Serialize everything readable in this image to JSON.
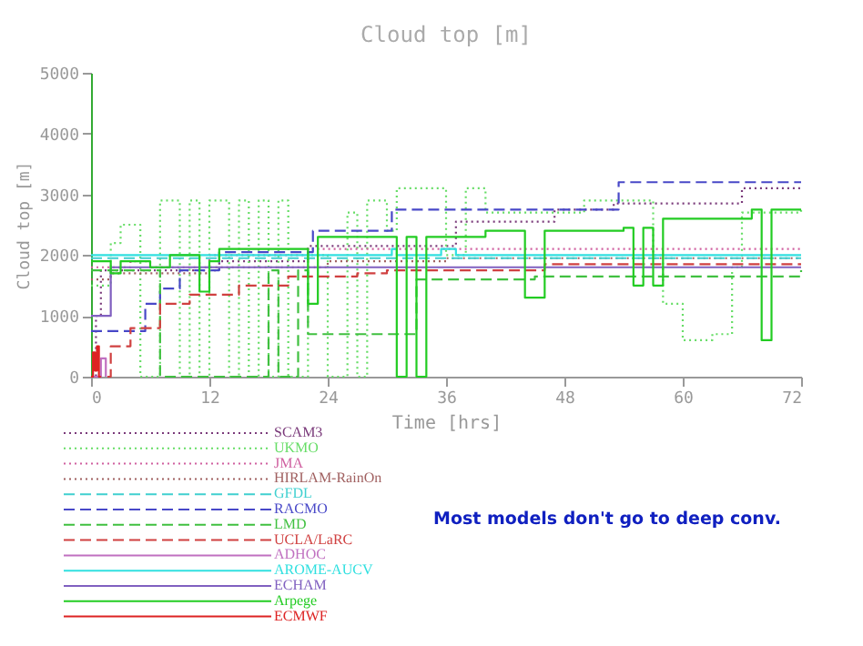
{
  "chart_data": {
    "type": "step",
    "title": "Cloud top [m]",
    "xlabel": "Time [hrs]",
    "ylabel": "Cloud top [m]",
    "xlim": [
      0,
      72
    ],
    "ylim": [
      0,
      5000
    ],
    "xticks": [
      0,
      12,
      24,
      36,
      48,
      60,
      72
    ],
    "yticks": [
      0,
      1000,
      2000,
      3000,
      4000,
      5000
    ],
    "grid": false,
    "legend": "bottom left",
    "marker": "none",
    "annotations": [
      "Most models don't go to deep conv."
    ],
    "series": [
      {
        "name": "SCAM3",
        "color": "#7a3a7a",
        "line_style": "dotted",
        "x": [
          0,
          0.5,
          1,
          12,
          13,
          22,
          33,
          36,
          37,
          44,
          47,
          53,
          65,
          66,
          72
        ],
        "values": [
          0,
          1000,
          1750,
          1750,
          1900,
          2150,
          2150,
          2150,
          2550,
          2550,
          2750,
          2850,
          2850,
          3100,
          3100
        ]
      },
      {
        "name": "UKMO",
        "color": "#66dd66",
        "line_style": "dotted",
        "x": [
          0,
          2,
          3,
          5,
          7,
          8,
          9,
          10,
          11,
          12,
          14,
          15,
          16,
          17,
          18,
          19,
          20,
          22,
          24,
          26,
          27,
          28,
          30,
          31,
          33,
          36,
          38,
          40,
          47,
          50,
          54,
          57,
          58,
          60,
          63,
          65,
          66,
          72
        ],
        "values": [
          1500,
          2200,
          2500,
          0,
          2900,
          2900,
          0,
          2900,
          0,
          2900,
          0,
          2900,
          0,
          2900,
          0,
          2900,
          0,
          2000,
          0,
          2700,
          0,
          2900,
          2400,
          3100,
          3100,
          2000,
          3100,
          2700,
          2700,
          2900,
          2900,
          2000,
          1200,
          600,
          700,
          1800,
          2700,
          2800
        ]
      },
      {
        "name": "JMA",
        "color": "#d060a0",
        "line_style": "dotted",
        "x": [
          0,
          4,
          6,
          12,
          14,
          22,
          72
        ],
        "values": [
          1800,
          1900,
          1800,
          2000,
          2000,
          2100,
          2100
        ]
      },
      {
        "name": "HIRLAM-RainOn",
        "color": "#a06060",
        "line_style": "dotted",
        "x": [
          0,
          2,
          12,
          24,
          36,
          72
        ],
        "values": [
          1600,
          1700,
          1800,
          1900,
          1950,
          1950
        ]
      },
      {
        "name": "GFDL",
        "color": "#40d0d0",
        "line_style": "dashed",
        "x": [
          0,
          30,
          31,
          72
        ],
        "values": [
          1950,
          1950,
          1950,
          1950
        ]
      },
      {
        "name": "RACMO",
        "color": "#4848c8",
        "line_style": "dashed",
        "x": [
          0,
          5,
          5.5,
          7,
          9,
          12,
          13,
          22,
          22.5,
          30,
          30.5,
          53,
          53.5,
          72
        ],
        "values": [
          750,
          750,
          1200,
          1450,
          1750,
          1750,
          2050,
          2050,
          2400,
          2400,
          2750,
          2750,
          3200,
          3200
        ]
      },
      {
        "name": "LMD",
        "color": "#40c040",
        "line_style": "dashed",
        "x": [
          0,
          6,
          7,
          18,
          19,
          21,
          22,
          30,
          33,
          38,
          40,
          45,
          70,
          72
        ],
        "values": [
          1750,
          1750,
          0,
          1750,
          0,
          1750,
          700,
          700,
          1600,
          1600,
          1600,
          1650,
          1650,
          1750
        ]
      },
      {
        "name": "UCLA/LaRC",
        "color": "#d04040",
        "line_style": "dashed",
        "x": [
          0,
          1.5,
          2,
          4,
          7,
          10,
          15,
          20,
          27,
          30,
          45,
          46,
          72
        ],
        "values": [
          0,
          0,
          500,
          800,
          1200,
          1350,
          1500,
          1650,
          1700,
          1750,
          1750,
          1850,
          1850
        ]
      },
      {
        "name": "ADHOC",
        "color": "#c070c0",
        "line_style": "solid",
        "x": [
          0,
          1,
          1.5
        ],
        "values": [
          0,
          300,
          0
        ]
      },
      {
        "name": "AROME-AUCV",
        "color": "#30e0e0",
        "line_style": "solid",
        "x": [
          0,
          30,
          30.5,
          31,
          35,
          35.5,
          37,
          72
        ],
        "values": [
          2000,
          2000,
          2100,
          2000,
          2000,
          2100,
          2000,
          2000
        ]
      },
      {
        "name": "ECHAM",
        "color": "#8060c0",
        "line_style": "solid",
        "x": [
          0,
          1,
          2,
          72
        ],
        "values": [
          1000,
          1000,
          1800,
          1800
        ]
      },
      {
        "name": "Arpege",
        "color": "#22cc22",
        "line_style": "solid",
        "x": [
          0,
          2,
          3,
          6,
          8,
          11,
          12,
          13,
          21,
          22,
          23,
          30,
          31,
          32,
          33,
          34,
          36,
          40,
          43,
          44,
          46,
          54,
          55,
          56,
          57,
          58,
          66,
          67,
          68,
          69,
          72
        ],
        "values": [
          1900,
          1700,
          1900,
          1800,
          2000,
          1400,
          1900,
          2100,
          2100,
          1200,
          2300,
          2300,
          0,
          2300,
          0,
          2300,
          2300,
          2400,
          2400,
          1300,
          2400,
          2450,
          1500,
          2450,
          1500,
          2600,
          2600,
          2750,
          600,
          2750,
          2750
        ]
      },
      {
        "name": "ECMWF",
        "color": "#dd2222",
        "line_style": "solid",
        "x": [
          0,
          0.2,
          0.4,
          0.6,
          0.8,
          1
        ],
        "values": [
          0,
          400,
          100,
          500,
          0,
          0
        ]
      }
    ]
  }
}
